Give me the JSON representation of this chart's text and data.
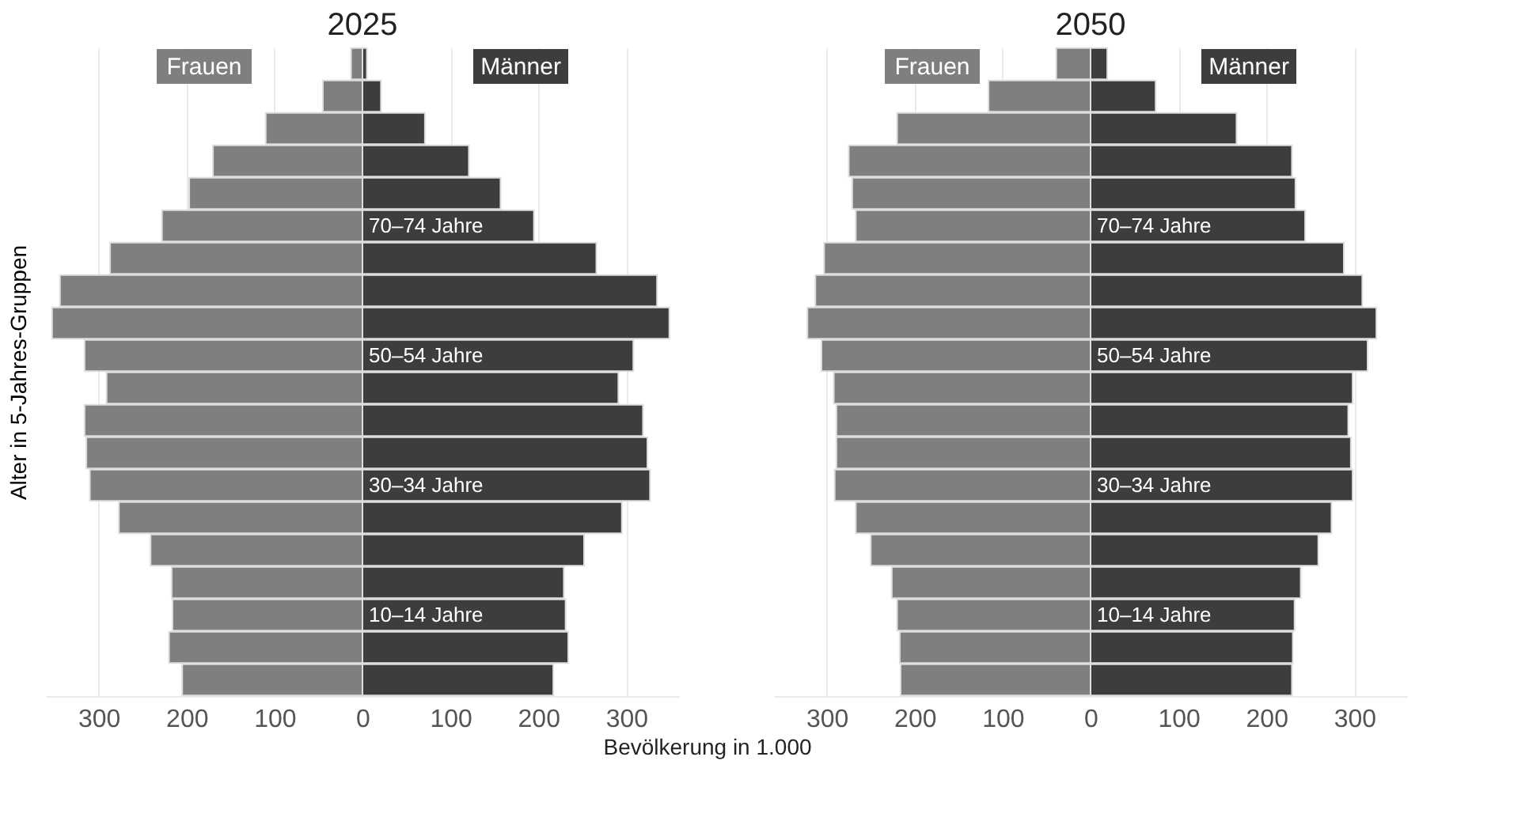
{
  "chart_data": [
    {
      "type": "bar",
      "orientation": "horizontal",
      "stacked": true,
      "title": "2025",
      "ylabel": "Alter in 5-Jahres-Gruppen",
      "xlabel": "Bevölkerung in 1.000",
      "categories": [
        null,
        null,
        null,
        null,
        null,
        "70–74 Jahre",
        null,
        null,
        null,
        "50–54 Jahre",
        null,
        null,
        null,
        "30–34 Jahre",
        null,
        null,
        null,
        "10–14 Jahre",
        null,
        null
      ],
      "series": [
        {
          "name": "Frauen",
          "color": "#7f7f7f",
          "values": [
            -13,
            -45,
            -110,
            -170,
            -197,
            -228,
            -287,
            -344,
            -353,
            -316,
            -291,
            -316,
            -314,
            -310,
            -277,
            -241,
            -217,
            -216,
            -220,
            -205
          ]
        },
        {
          "name": "Männer",
          "color": "#3d3d3c",
          "values": [
            5,
            21,
            71,
            121,
            157,
            195,
            266,
            335,
            349,
            308,
            291,
            319,
            324,
            327,
            295,
            252,
            229,
            231,
            234,
            217
          ]
        }
      ],
      "xlim": [
        -360,
        360
      ],
      "xticks": [
        {
          "value": -300,
          "label": "300"
        },
        {
          "value": -200,
          "label": "200"
        },
        {
          "value": -100,
          "label": "100"
        },
        0,
        100,
        200,
        300
      ],
      "grid": "x",
      "legend": "top",
      "tick_labels": "x"
    },
    {
      "type": "bar",
      "orientation": "horizontal",
      "stacked": true,
      "title": "2050",
      "categories": [
        null,
        null,
        null,
        null,
        null,
        "70–74 Jahre",
        null,
        null,
        null,
        "50–54 Jahre",
        null,
        null,
        null,
        "30–34 Jahre",
        null,
        null,
        null,
        "10–14 Jahre",
        null,
        null
      ],
      "series": [
        {
          "name": "Frauen",
          "color": "#7f7f7f",
          "values": [
            -39,
            -116,
            -220,
            -275,
            -271,
            -267,
            -303,
            -313,
            -322,
            -306,
            -292,
            -289,
            -289,
            -291,
            -267,
            -250,
            -226,
            -220,
            -217,
            -216
          ]
        },
        {
          "name": "Männer",
          "color": "#3d3d3c",
          "values": [
            19,
            74,
            166,
            229,
            233,
            244,
            288,
            309,
            325,
            315,
            298,
            293,
            296,
            298,
            274,
            259,
            239,
            232,
            230,
            229
          ]
        }
      ],
      "xlim": [
        -360,
        360
      ],
      "xticks": [
        {
          "value": -300,
          "label": "300"
        },
        {
          "value": -200,
          "label": "200"
        },
        {
          "value": -100,
          "label": "100"
        },
        0,
        100,
        200,
        300
      ],
      "grid": "x",
      "legend": "top",
      "tick_labels": "x"
    }
  ]
}
